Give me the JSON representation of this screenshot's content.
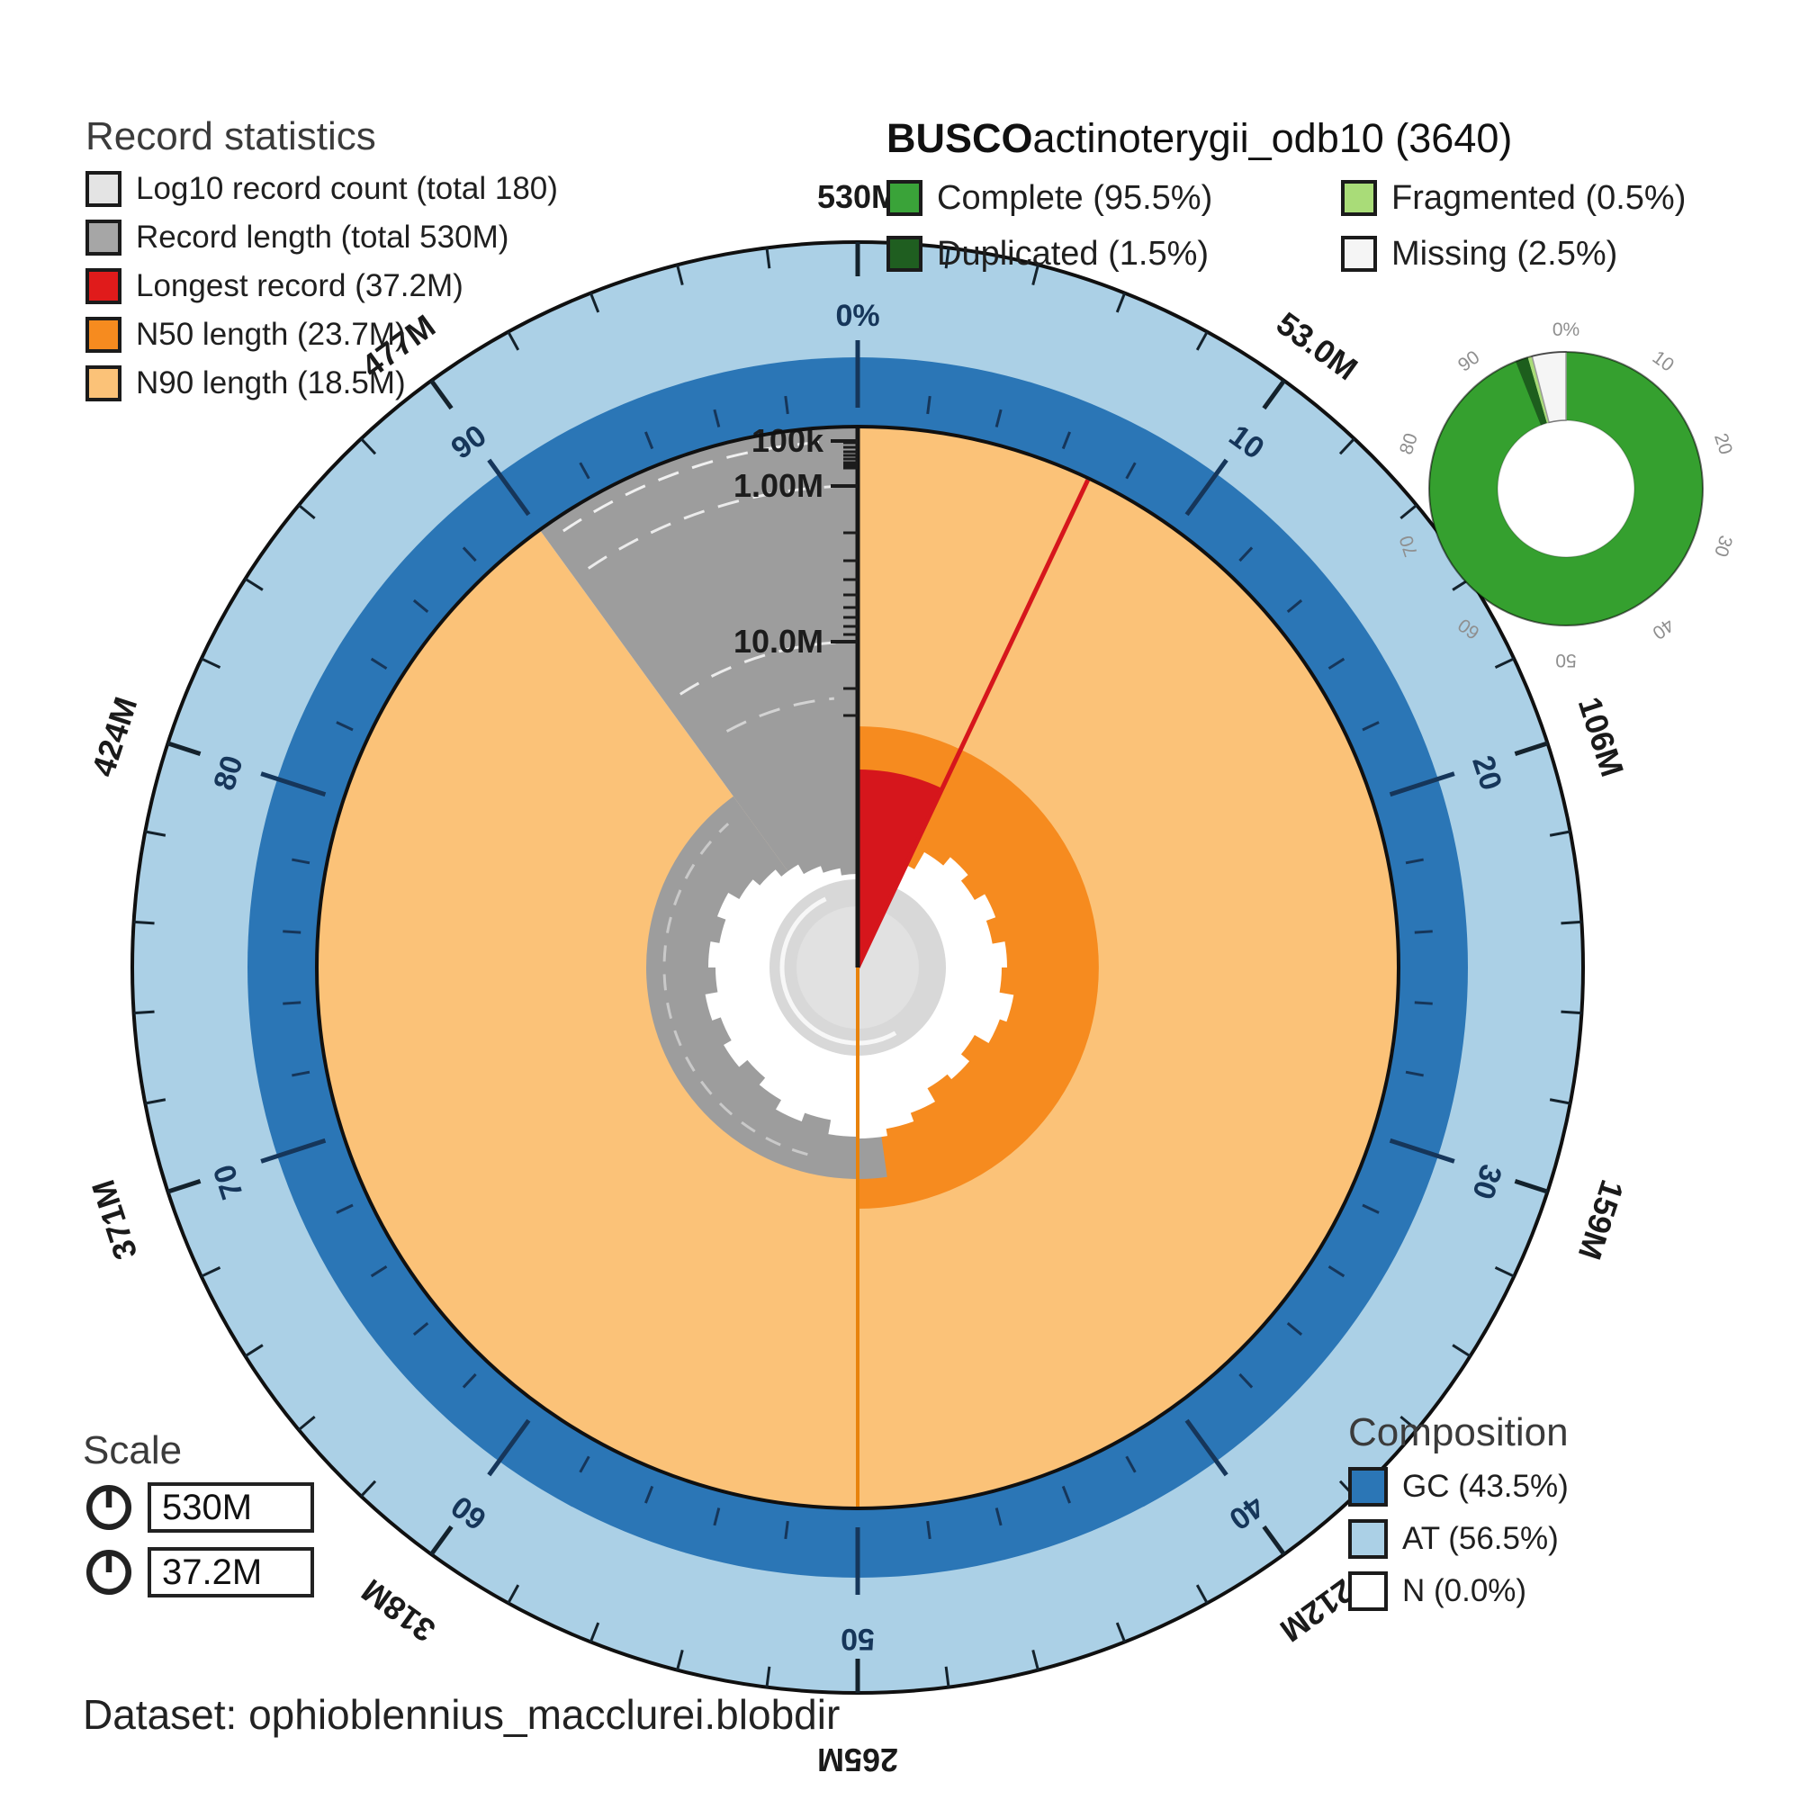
{
  "record_stats": {
    "heading": "Record statistics",
    "items": [
      {
        "name": "log10-record-count",
        "label": "Log10 record count (total 180)",
        "color": "#e4e4e4"
      },
      {
        "name": "record-length",
        "label": "Record length (total 530M)",
        "color": "#a6a6a6"
      },
      {
        "name": "longest-record",
        "label": "Longest record (37.2M)",
        "color": "#e01b1b"
      },
      {
        "name": "n50-length",
        "label": "N50 length (23.7M)",
        "color": "#f68b1f"
      },
      {
        "name": "n90-length",
        "label": "N90 length (18.5M)",
        "color": "#fbc278"
      }
    ]
  },
  "busco": {
    "heading_bold": "BUSCO",
    "heading_rest": "actinoterygii_odb10 (3640)",
    "items": [
      {
        "name": "complete",
        "label": "Complete (95.5%)",
        "color": "#3aa339"
      },
      {
        "name": "fragmented",
        "label": "Fragmented (0.5%)",
        "color": "#a9dc78"
      },
      {
        "name": "duplicated",
        "label": "Duplicated (1.5%)",
        "color": "#1f5e20"
      },
      {
        "name": "missing",
        "label": "Missing (2.5%)",
        "color": "#f5f5f5"
      }
    ]
  },
  "scale": {
    "heading": "Scale",
    "values": [
      "530M",
      "37.2M"
    ]
  },
  "composition": {
    "heading": "Composition",
    "items": [
      {
        "name": "gc",
        "label": "GC (43.5%)",
        "color": "#2b76b6"
      },
      {
        "name": "at",
        "label": "AT (56.5%)",
        "color": "#abd0e6"
      },
      {
        "name": "n",
        "label": "N (0.0%)",
        "color": "#ffffff"
      }
    ]
  },
  "dataset": {
    "label": "Dataset: ophioblennius_macclurei.blobdir"
  },
  "chart_data": {
    "type": "snail-plot",
    "title": "BUSCO actinoterygii_odb10 (3640)",
    "assembly": {
      "record_count": 180,
      "total_length": "530M",
      "longest_record": "37.2M",
      "n50_length": "23.7M",
      "n90_length": "18.5M",
      "gc_percent": 43.5,
      "at_percent": 56.5,
      "n_percent": 0.0
    },
    "outer_axis": {
      "unit_labels": [
        "530M",
        "53.0M",
        "106M",
        "159M",
        "212M",
        "265M",
        "318M",
        "371M",
        "424M",
        "477M"
      ],
      "percent_labels": [
        "0%",
        "10",
        "20",
        "30",
        "40",
        "50",
        "60",
        "70",
        "80",
        "90"
      ],
      "major_tick_percent": 10,
      "minor_tick_percent": 2
    },
    "radial_axis": {
      "scale": "log",
      "tick_labels": [
        "100k",
        "1.00M",
        "10.0M"
      ]
    },
    "segments": {
      "n50_percent_span": [
        0,
        50
      ],
      "n90_percent_span": [
        0,
        90
      ],
      "longest_record_percent_span": [
        0,
        7.02
      ],
      "record_length_gray_span": [
        90,
        100
      ]
    },
    "busco_donut": {
      "type": "pie",
      "categories": [
        "Complete",
        "Duplicated",
        "Fragmented",
        "Missing"
      ],
      "values": [
        95.5,
        1.5,
        0.5,
        2.5
      ],
      "lineage": "actinoterygii_odb10",
      "total_buscos": 3640,
      "percent_labels": [
        "0%",
        "10",
        "20",
        "30",
        "40",
        "50",
        "60",
        "70",
        "80",
        "90"
      ]
    },
    "colors": {
      "at_band": "#abd0e6",
      "gc_band": "#2b76b6",
      "n90": "#fbc278",
      "n50": "#f68b1f",
      "longest": "#d6161c",
      "record_gray": "#9d9d9d",
      "count_gray": "#d8d8d8",
      "count_gray_inner": "#e1e1e1",
      "complete": "#35a02f",
      "duplicated": "#1d5e1d",
      "fragmented": "#a9dc78",
      "missing": "#f5f5f5",
      "navy_tick": "#16365a",
      "axis_black": "#161616",
      "n50_line": "#e8830c"
    },
    "center_blob_radii": [
      100,
      112,
      126,
      148,
      160,
      150,
      163,
      152,
      166,
      160,
      176,
      168,
      150,
      162,
      155,
      172,
      182,
      190,
      188,
      172,
      182,
      170,
      160,
      172,
      162,
      172,
      158,
      166,
      156,
      166,
      152,
      142,
      132,
      120,
      112,
      104
    ]
  }
}
